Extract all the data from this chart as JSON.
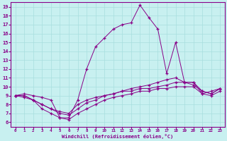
{
  "xlabel": "Windchill (Refroidissement éolien,°C)",
  "bg_color": "#c8f0f0",
  "line_color": "#880088",
  "xlim": [
    -0.5,
    23.5
  ],
  "ylim": [
    5.5,
    19.5
  ],
  "xticks": [
    0,
    1,
    2,
    3,
    4,
    5,
    6,
    7,
    8,
    9,
    10,
    11,
    12,
    13,
    14,
    15,
    16,
    17,
    18,
    19,
    20,
    21,
    22,
    23
  ],
  "yticks": [
    6,
    7,
    8,
    9,
    10,
    11,
    12,
    13,
    14,
    15,
    16,
    17,
    18,
    19
  ],
  "curve1_x": [
    0,
    1,
    2,
    3,
    4,
    5,
    6,
    7,
    8,
    9,
    10,
    11,
    12,
    13,
    14,
    15,
    16,
    17,
    18,
    19,
    20,
    21,
    22,
    23
  ],
  "curve1_y": [
    9.0,
    9.2,
    9.0,
    8.8,
    8.5,
    6.5,
    6.5,
    8.5,
    12.0,
    14.5,
    15.5,
    16.5,
    17.0,
    17.2,
    19.2,
    17.8,
    16.5,
    11.5,
    15.0,
    10.5,
    10.5,
    9.2,
    9.5,
    9.8
  ],
  "curve2_x": [
    0,
    1,
    2,
    3,
    4,
    5,
    6,
    7,
    8,
    9,
    10,
    11,
    12,
    13,
    14,
    15,
    16,
    17,
    18,
    19,
    20,
    21,
    22,
    23
  ],
  "curve2_y": [
    9.0,
    9.0,
    8.5,
    8.0,
    7.5,
    7.2,
    7.0,
    8.0,
    8.5,
    8.8,
    9.0,
    9.2,
    9.5,
    9.8,
    10.0,
    10.2,
    10.5,
    10.8,
    11.0,
    10.5,
    10.5,
    9.5,
    9.2,
    9.8
  ],
  "curve3_x": [
    0,
    1,
    2,
    3,
    4,
    5,
    6,
    7,
    8,
    9,
    10,
    11,
    12,
    13,
    14,
    15,
    16,
    17,
    18,
    19,
    20,
    21,
    22,
    23
  ],
  "curve3_y": [
    9.0,
    9.0,
    8.5,
    8.0,
    7.5,
    7.0,
    6.8,
    7.5,
    8.2,
    8.5,
    9.0,
    9.2,
    9.5,
    9.5,
    9.8,
    9.8,
    10.0,
    10.2,
    10.5,
    10.5,
    10.2,
    9.5,
    9.2,
    9.8
  ],
  "curve4_x": [
    0,
    1,
    2,
    3,
    4,
    5,
    6,
    7,
    8,
    9,
    10,
    11,
    12,
    13,
    14,
    15,
    16,
    17,
    18,
    19,
    20,
    21,
    22,
    23
  ],
  "curve4_y": [
    9.0,
    8.8,
    8.5,
    7.5,
    7.0,
    6.5,
    6.3,
    7.0,
    7.5,
    8.0,
    8.5,
    8.8,
    9.0,
    9.2,
    9.5,
    9.5,
    9.8,
    9.8,
    10.0,
    10.0,
    10.0,
    9.2,
    9.0,
    9.5
  ]
}
